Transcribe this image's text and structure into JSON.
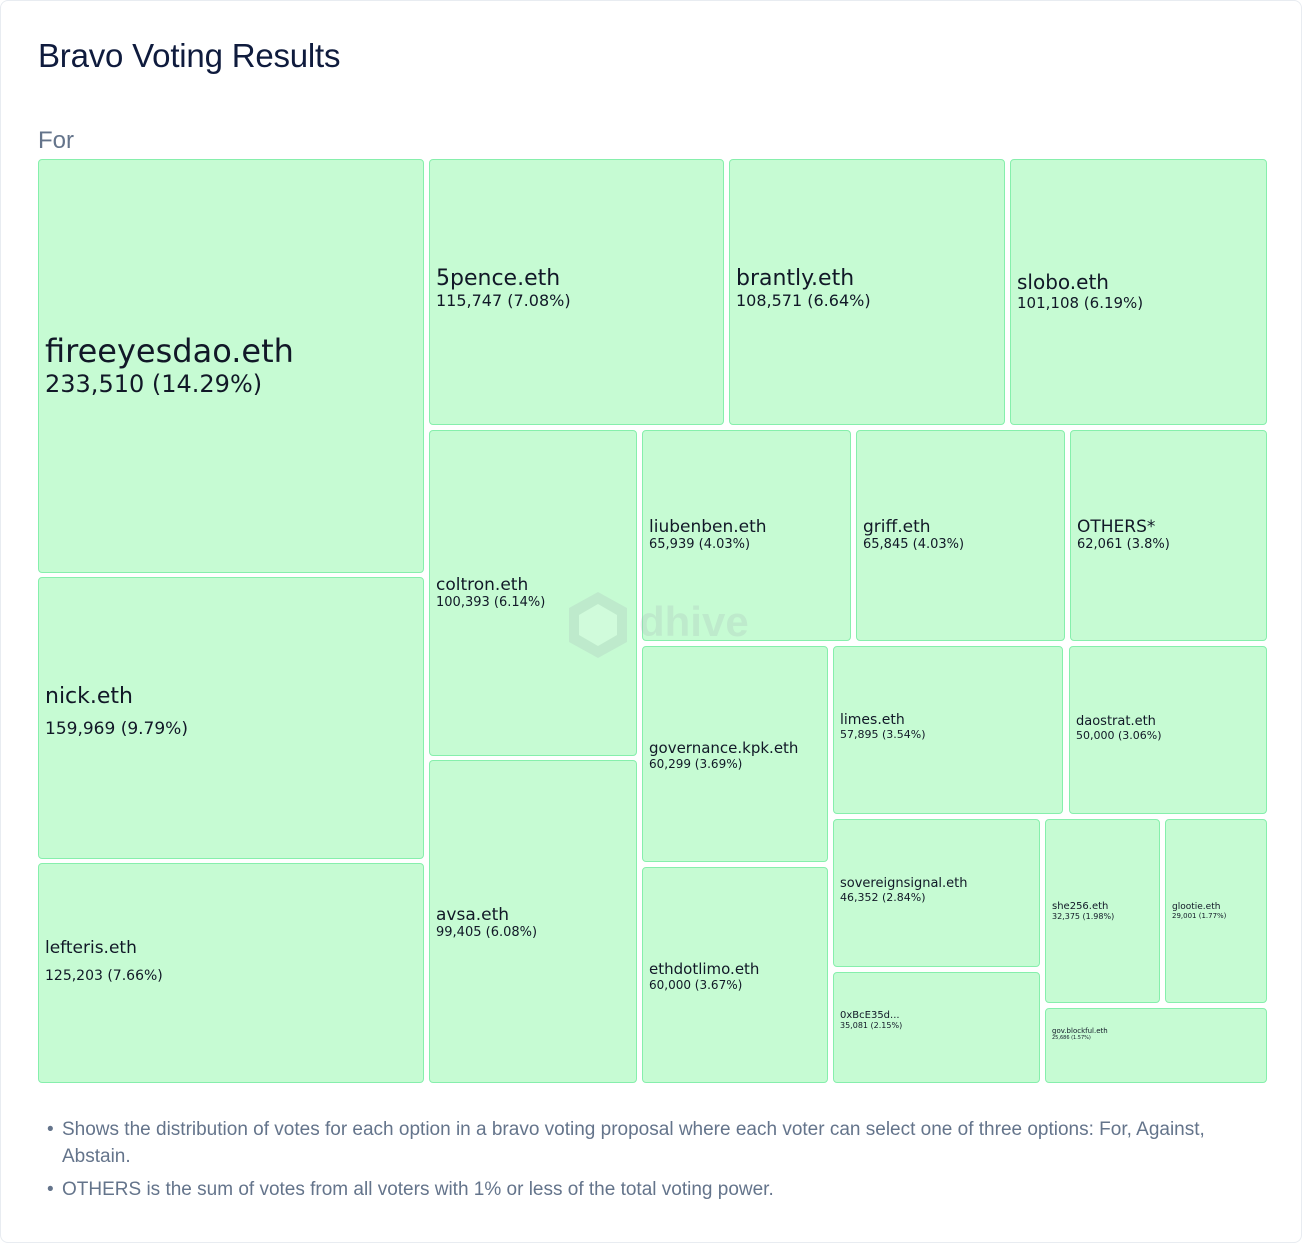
{
  "title": "Bravo Voting Results",
  "subtitle": "For",
  "watermark": "dhive",
  "notes": [
    "Shows the distribution of votes for each option in a bravo voting proposal where each voter can select one of three options: For, Against, Abstain.",
    "OTHERS is the sum of votes from all voters with 1% or less of the total voting power."
  ],
  "colors": {
    "cell_fill": "#c6fbd3",
    "cell_border": "#86efac"
  },
  "chart_data": {
    "type": "treemap",
    "title": "Bravo Voting Results",
    "subtitle": "For",
    "items": [
      {
        "name": "fireeyesdao.eth",
        "value": 233510,
        "label": "233,510 (14.29%)"
      },
      {
        "name": "nick.eth",
        "value": 159969,
        "label": "159,969 (9.79%)"
      },
      {
        "name": "lefteris.eth",
        "value": 125203,
        "label": "125,203 (7.66%)"
      },
      {
        "name": "5pence.eth",
        "value": 115747,
        "label": "115,747 (7.08%)"
      },
      {
        "name": "brantly.eth",
        "value": 108571,
        "label": "108,571 (6.64%)"
      },
      {
        "name": "slobo.eth",
        "value": 101108,
        "label": "101,108 (6.19%)"
      },
      {
        "name": "coltron.eth",
        "value": 100393,
        "label": "100,393 (6.14%)"
      },
      {
        "name": "avsa.eth",
        "value": 99405,
        "label": "99,405 (6.08%)"
      },
      {
        "name": "liubenben.eth",
        "value": 65939,
        "label": "65,939 (4.03%)"
      },
      {
        "name": "griff.eth",
        "value": 65845,
        "label": "65,845 (4.03%)"
      },
      {
        "name": "OTHERS*",
        "value": 62061,
        "label": "62,061 (3.8%)"
      },
      {
        "name": "governance.kpk.eth",
        "value": 60299,
        "label": "60,299 (3.69%)"
      },
      {
        "name": "ethdotlimo.eth",
        "value": 60000,
        "label": "60,000 (3.67%)"
      },
      {
        "name": "limes.eth",
        "value": 57895,
        "label": "57,895 (3.54%)"
      },
      {
        "name": "daostrat.eth",
        "value": 50000,
        "label": "50,000 (3.06%)"
      },
      {
        "name": "sovereignsignal.eth",
        "value": 46352,
        "label": "46,352 (2.84%)"
      },
      {
        "name": "0xBcE35d...",
        "value": 35081,
        "label": "35,081 (2.15%)"
      },
      {
        "name": "she256.eth",
        "value": 32375,
        "label": "32,375 (1.98%)"
      },
      {
        "name": "glootie.eth",
        "value": 29001,
        "label": "29,001 (1.77%)"
      },
      {
        "name": "gov.blockful.eth",
        "value": 25686,
        "label": "25,686 (1.57%)"
      }
    ]
  }
}
